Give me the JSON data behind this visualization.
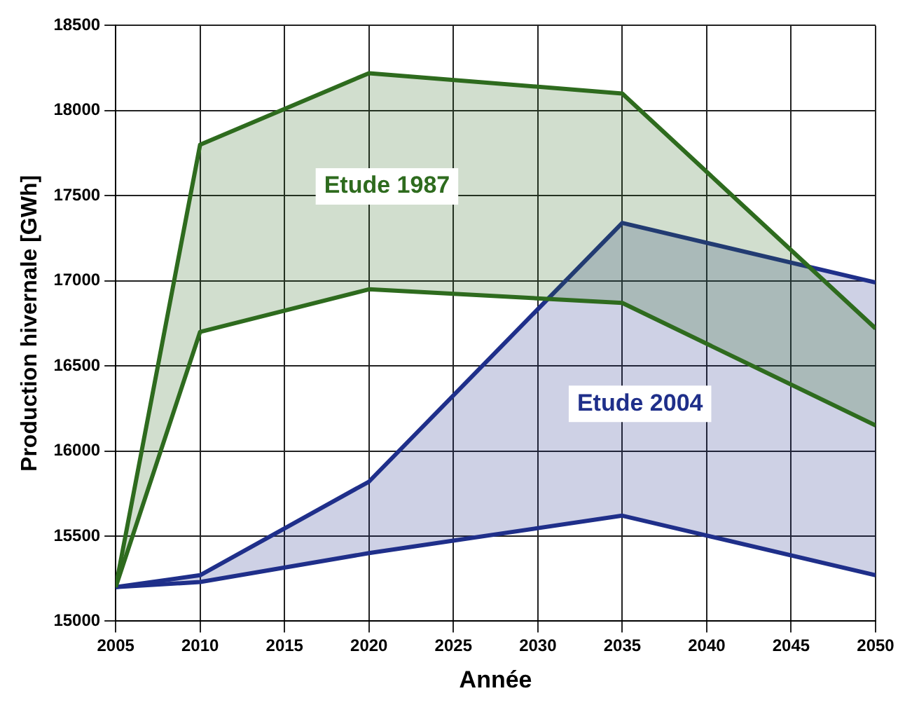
{
  "chart_data": {
    "type": "line",
    "xlabel": "Année",
    "ylabel": "Production hivernale [GWh]",
    "x": [
      2005,
      2010,
      2020,
      2035,
      2050
    ],
    "series": [
      {
        "type": "line",
        "color": "#2e6b1e",
        "values": [
          15200,
          16700,
          16950,
          16870,
          16150
        ]
      },
      {
        "type": "area",
        "color": "#2e6b1e",
        "values": [
          15200,
          17800,
          18220,
          18100,
          16720
        ]
      },
      {
        "type": "line",
        "color": "#1f2f8a",
        "values": [
          15200,
          15230,
          15400,
          15620,
          15270
        ]
      },
      {
        "type": "area",
        "color": "#1f2f8a",
        "values": [
          15200,
          15270,
          15820,
          17340,
          16990
        ]
      }
    ],
    "annotations": [
      "Etude 1987",
      "Etude 2004"
    ],
    "xlim": [
      2005,
      2050
    ],
    "xticks": [
      2005,
      2010,
      2015,
      2020,
      2025,
      2030,
      2035,
      2040,
      2045,
      2050
    ],
    "ylim": [
      15000,
      18500
    ],
    "yticks": [
      15000,
      15500,
      16000,
      16500,
      17000,
      17500,
      18000,
      18500
    ],
    "grid": true,
    "marker": "none",
    "line_style": "solid",
    "legend": false
  }
}
